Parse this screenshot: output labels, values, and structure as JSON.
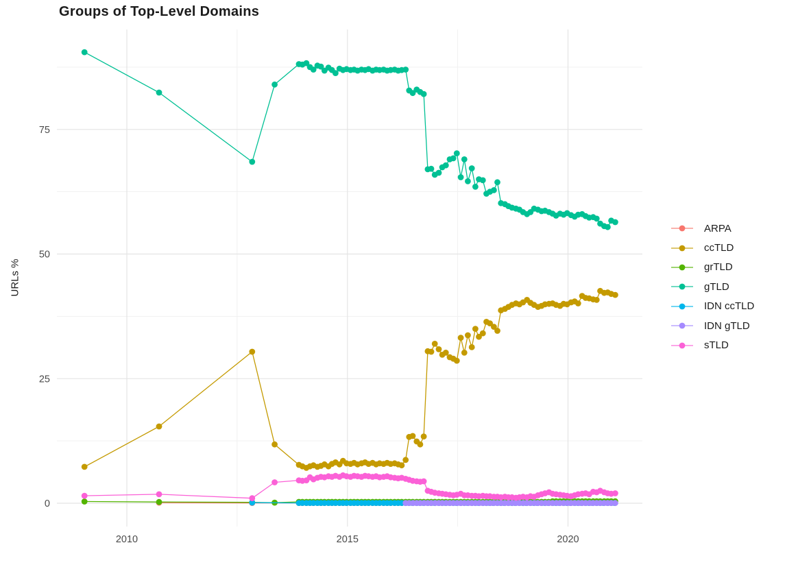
{
  "chart_data": {
    "type": "line",
    "title": "Groups of Top-Level Domains",
    "xlabel": "",
    "ylabel": "URLs %",
    "x_ticks": [
      2010,
      2015,
      2020
    ],
    "x_minor_ticks": [
      2012.5,
      2017.5
    ],
    "y_ticks": [
      0,
      25,
      50,
      75
    ],
    "y_minor_ticks": [
      12.5,
      37.5,
      62.5,
      87.5
    ],
    "xlim": [
      2008.45,
      2021.7
    ],
    "ylim": [
      -4.7,
      95
    ],
    "grid": true,
    "legend_position": "right",
    "series": [
      {
        "name": "ARPA",
        "color": "#F8766D",
        "points": [
          [
            2010.73,
            0.12
          ],
          [
            2012.84,
            0.06
          ]
        ],
        "runs": [
          {
            "from": 2013.9,
            "to": 2021.07,
            "step": 0.0833,
            "value": 0.05
          }
        ]
      },
      {
        "name": "ccTLD",
        "color": "#C49A00",
        "points": [
          [
            2009.04,
            7.3
          ],
          [
            2010.73,
            15.4
          ],
          [
            2012.84,
            30.4
          ],
          [
            2013.35,
            11.8
          ],
          [
            2013.9,
            7.7
          ],
          [
            2013.98,
            7.4
          ],
          [
            2014.07,
            7.1
          ],
          [
            2014.15,
            7.4
          ],
          [
            2014.23,
            7.6
          ],
          [
            2014.32,
            7.3
          ],
          [
            2014.4,
            7.5
          ],
          [
            2014.48,
            7.8
          ],
          [
            2014.57,
            7.4
          ],
          [
            2014.65,
            7.9
          ],
          [
            2014.73,
            8.2
          ],
          [
            2014.82,
            7.8
          ],
          [
            2014.9,
            8.5
          ],
          [
            2014.98,
            8.0
          ],
          [
            2015.07,
            7.9
          ],
          [
            2015.15,
            8.1
          ],
          [
            2015.23,
            7.8
          ],
          [
            2015.32,
            8.0
          ],
          [
            2015.4,
            8.2
          ],
          [
            2015.48,
            7.9
          ],
          [
            2015.57,
            8.1
          ],
          [
            2015.65,
            7.8
          ],
          [
            2015.73,
            8.0
          ],
          [
            2015.82,
            7.9
          ],
          [
            2015.9,
            8.1
          ],
          [
            2015.98,
            7.9
          ],
          [
            2016.07,
            8.0
          ],
          [
            2016.15,
            7.8
          ],
          [
            2016.23,
            7.6
          ],
          [
            2016.32,
            8.7
          ],
          [
            2016.4,
            13.3
          ],
          [
            2016.48,
            13.5
          ],
          [
            2016.57,
            12.4
          ],
          [
            2016.65,
            11.8
          ],
          [
            2016.73,
            13.4
          ],
          [
            2016.82,
            30.5
          ],
          [
            2016.9,
            30.4
          ],
          [
            2016.98,
            32.0
          ],
          [
            2017.07,
            30.9
          ],
          [
            2017.15,
            29.8
          ],
          [
            2017.23,
            30.2
          ],
          [
            2017.32,
            29.3
          ],
          [
            2017.4,
            29.0
          ],
          [
            2017.48,
            28.6
          ],
          [
            2017.57,
            33.2
          ],
          [
            2017.65,
            30.2
          ],
          [
            2017.73,
            33.7
          ],
          [
            2017.82,
            31.3
          ],
          [
            2017.9,
            35.0
          ],
          [
            2017.98,
            33.4
          ],
          [
            2018.07,
            34.1
          ],
          [
            2018.15,
            36.4
          ],
          [
            2018.23,
            36.1
          ],
          [
            2018.32,
            35.4
          ],
          [
            2018.4,
            34.6
          ],
          [
            2018.48,
            38.7
          ],
          [
            2018.57,
            39.0
          ],
          [
            2018.65,
            39.4
          ],
          [
            2018.73,
            39.8
          ],
          [
            2018.82,
            40.1
          ],
          [
            2018.9,
            39.9
          ],
          [
            2018.98,
            40.3
          ],
          [
            2019.07,
            40.8
          ],
          [
            2019.15,
            40.2
          ],
          [
            2019.23,
            39.8
          ],
          [
            2019.32,
            39.4
          ],
          [
            2019.4,
            39.6
          ],
          [
            2019.48,
            39.9
          ],
          [
            2019.57,
            40.0
          ],
          [
            2019.65,
            40.1
          ],
          [
            2019.73,
            39.8
          ],
          [
            2019.82,
            39.6
          ],
          [
            2019.9,
            40.0
          ],
          [
            2019.98,
            39.9
          ],
          [
            2020.07,
            40.3
          ],
          [
            2020.15,
            40.5
          ],
          [
            2020.23,
            40.1
          ],
          [
            2020.32,
            41.6
          ],
          [
            2020.4,
            41.2
          ],
          [
            2020.48,
            41.1
          ],
          [
            2020.57,
            40.9
          ],
          [
            2020.65,
            40.8
          ],
          [
            2020.73,
            42.6
          ],
          [
            2020.82,
            42.2
          ],
          [
            2020.9,
            42.3
          ],
          [
            2020.98,
            42.0
          ],
          [
            2021.07,
            41.8
          ]
        ]
      },
      {
        "name": "grTLD",
        "color": "#53B400",
        "points": [
          [
            2009.04,
            0.35
          ],
          [
            2010.73,
            0.25
          ],
          [
            2012.84,
            0.18
          ],
          [
            2013.35,
            0.12
          ]
        ],
        "runs": [
          {
            "from": 2013.9,
            "to": 2019.57,
            "step": 0.0833,
            "value": 0.28
          },
          {
            "from": 2019.65,
            "to": 2021.07,
            "step": 0.0833,
            "value": 0.4
          }
        ]
      },
      {
        "name": "gTLD",
        "color": "#00C094",
        "points": [
          [
            2009.04,
            90.5
          ],
          [
            2010.73,
            82.4
          ],
          [
            2012.84,
            68.5
          ],
          [
            2013.35,
            84.0
          ],
          [
            2013.9,
            88.1
          ],
          [
            2013.98,
            88.0
          ],
          [
            2014.07,
            88.3
          ],
          [
            2014.15,
            87.5
          ],
          [
            2014.23,
            87.0
          ],
          [
            2014.32,
            87.8
          ],
          [
            2014.4,
            87.6
          ],
          [
            2014.48,
            86.8
          ],
          [
            2014.57,
            87.4
          ],
          [
            2014.65,
            86.9
          ],
          [
            2014.73,
            86.3
          ],
          [
            2014.82,
            87.2
          ],
          [
            2014.9,
            86.9
          ],
          [
            2014.98,
            87.1
          ],
          [
            2015.07,
            86.9
          ],
          [
            2015.15,
            87.0
          ],
          [
            2015.23,
            86.8
          ],
          [
            2015.32,
            87.0
          ],
          [
            2015.4,
            86.9
          ],
          [
            2015.48,
            87.1
          ],
          [
            2015.57,
            86.8
          ],
          [
            2015.65,
            87.0
          ],
          [
            2015.73,
            86.9
          ],
          [
            2015.82,
            87.0
          ],
          [
            2015.9,
            86.8
          ],
          [
            2015.98,
            86.9
          ],
          [
            2016.07,
            87.0
          ],
          [
            2016.15,
            86.8
          ],
          [
            2016.23,
            86.9
          ],
          [
            2016.32,
            87.0
          ],
          [
            2016.4,
            82.8
          ],
          [
            2016.48,
            82.3
          ],
          [
            2016.57,
            83.0
          ],
          [
            2016.65,
            82.5
          ],
          [
            2016.73,
            82.1
          ],
          [
            2016.82,
            67.0
          ],
          [
            2016.9,
            67.1
          ],
          [
            2016.98,
            65.9
          ],
          [
            2017.07,
            66.3
          ],
          [
            2017.15,
            67.4
          ],
          [
            2017.23,
            67.8
          ],
          [
            2017.32,
            69.0
          ],
          [
            2017.4,
            69.2
          ],
          [
            2017.48,
            70.2
          ],
          [
            2017.57,
            65.4
          ],
          [
            2017.65,
            69.0
          ],
          [
            2017.73,
            64.6
          ],
          [
            2017.82,
            67.2
          ],
          [
            2017.9,
            63.5
          ],
          [
            2017.98,
            65.0
          ],
          [
            2018.07,
            64.8
          ],
          [
            2018.15,
            62.1
          ],
          [
            2018.23,
            62.5
          ],
          [
            2018.32,
            62.8
          ],
          [
            2018.4,
            64.4
          ],
          [
            2018.48,
            60.2
          ],
          [
            2018.57,
            60.0
          ],
          [
            2018.65,
            59.6
          ],
          [
            2018.73,
            59.3
          ],
          [
            2018.82,
            59.1
          ],
          [
            2018.9,
            58.9
          ],
          [
            2018.98,
            58.4
          ],
          [
            2019.07,
            58.0
          ],
          [
            2019.15,
            58.4
          ],
          [
            2019.23,
            59.1
          ],
          [
            2019.32,
            58.9
          ],
          [
            2019.4,
            58.6
          ],
          [
            2019.48,
            58.7
          ],
          [
            2019.57,
            58.4
          ],
          [
            2019.65,
            58.1
          ],
          [
            2019.73,
            57.7
          ],
          [
            2019.82,
            58.1
          ],
          [
            2019.9,
            57.9
          ],
          [
            2019.98,
            58.2
          ],
          [
            2020.07,
            57.8
          ],
          [
            2020.15,
            57.5
          ],
          [
            2020.23,
            57.9
          ],
          [
            2020.32,
            58.0
          ],
          [
            2020.4,
            57.6
          ],
          [
            2020.48,
            57.3
          ],
          [
            2020.57,
            57.4
          ],
          [
            2020.65,
            57.1
          ],
          [
            2020.73,
            56.1
          ],
          [
            2020.82,
            55.6
          ],
          [
            2020.9,
            55.4
          ],
          [
            2020.98,
            56.7
          ],
          [
            2021.07,
            56.4
          ]
        ]
      },
      {
        "name": "IDN ccTLD",
        "color": "#00B6EB",
        "points": [
          [
            2012.84,
            0.12
          ]
        ],
        "runs": [
          {
            "from": 2013.9,
            "to": 2021.07,
            "step": 0.0833,
            "value": 0.06
          }
        ]
      },
      {
        "name": "IDN gTLD",
        "color": "#A58AFF",
        "points": [],
        "runs": [
          {
            "from": 2016.32,
            "to": 2021.07,
            "step": 0.0833,
            "value": 0.04
          }
        ]
      },
      {
        "name": "sTLD",
        "color": "#FB61D7",
        "points": [
          [
            2009.04,
            1.5
          ],
          [
            2010.73,
            1.8
          ],
          [
            2012.84,
            1.0
          ],
          [
            2013.35,
            4.2
          ],
          [
            2013.9,
            4.6
          ],
          [
            2013.98,
            4.5
          ],
          [
            2014.07,
            4.6
          ],
          [
            2014.15,
            5.2
          ],
          [
            2014.23,
            4.8
          ],
          [
            2014.32,
            5.1
          ],
          [
            2014.4,
            5.3
          ],
          [
            2014.48,
            5.2
          ],
          [
            2014.57,
            5.4
          ],
          [
            2014.65,
            5.3
          ],
          [
            2014.73,
            5.5
          ],
          [
            2014.82,
            5.3
          ],
          [
            2014.9,
            5.6
          ],
          [
            2014.98,
            5.4
          ],
          [
            2015.07,
            5.3
          ],
          [
            2015.15,
            5.5
          ],
          [
            2015.23,
            5.4
          ],
          [
            2015.32,
            5.3
          ],
          [
            2015.4,
            5.5
          ],
          [
            2015.48,
            5.4
          ],
          [
            2015.57,
            5.3
          ],
          [
            2015.65,
            5.4
          ],
          [
            2015.73,
            5.2
          ],
          [
            2015.82,
            5.3
          ],
          [
            2015.9,
            5.4
          ],
          [
            2015.98,
            5.2
          ],
          [
            2016.07,
            5.1
          ],
          [
            2016.15,
            5.0
          ],
          [
            2016.23,
            5.1
          ],
          [
            2016.32,
            4.9
          ],
          [
            2016.4,
            4.7
          ],
          [
            2016.48,
            4.5
          ],
          [
            2016.57,
            4.4
          ],
          [
            2016.65,
            4.3
          ],
          [
            2016.73,
            4.4
          ],
          [
            2016.82,
            2.5
          ],
          [
            2016.9,
            2.3
          ],
          [
            2016.98,
            2.1
          ],
          [
            2017.07,
            2.0
          ],
          [
            2017.15,
            1.9
          ],
          [
            2017.23,
            1.8
          ],
          [
            2017.32,
            1.7
          ],
          [
            2017.4,
            1.6
          ],
          [
            2017.48,
            1.7
          ],
          [
            2017.57,
            1.9
          ],
          [
            2017.65,
            1.6
          ],
          [
            2017.73,
            1.6
          ],
          [
            2017.82,
            1.5
          ],
          [
            2017.9,
            1.5
          ],
          [
            2017.98,
            1.4
          ],
          [
            2018.07,
            1.5
          ],
          [
            2018.15,
            1.4
          ],
          [
            2018.23,
            1.4
          ],
          [
            2018.32,
            1.3
          ],
          [
            2018.4,
            1.3
          ],
          [
            2018.48,
            1.2
          ],
          [
            2018.57,
            1.3
          ],
          [
            2018.65,
            1.2
          ],
          [
            2018.73,
            1.2
          ],
          [
            2018.82,
            1.1
          ],
          [
            2018.9,
            1.2
          ],
          [
            2018.98,
            1.3
          ],
          [
            2019.07,
            1.2
          ],
          [
            2019.15,
            1.4
          ],
          [
            2019.23,
            1.3
          ],
          [
            2019.32,
            1.6
          ],
          [
            2019.4,
            1.8
          ],
          [
            2019.48,
            2.0
          ],
          [
            2019.57,
            2.2
          ],
          [
            2019.65,
            1.9
          ],
          [
            2019.73,
            1.8
          ],
          [
            2019.82,
            1.7
          ],
          [
            2019.9,
            1.6
          ],
          [
            2019.98,
            1.5
          ],
          [
            2020.07,
            1.4
          ],
          [
            2020.15,
            1.6
          ],
          [
            2020.23,
            1.8
          ],
          [
            2020.32,
            1.9
          ],
          [
            2020.4,
            2.0
          ],
          [
            2020.48,
            1.8
          ],
          [
            2020.57,
            2.3
          ],
          [
            2020.65,
            2.2
          ],
          [
            2020.73,
            2.5
          ],
          [
            2020.82,
            2.2
          ],
          [
            2020.9,
            2.0
          ],
          [
            2020.98,
            1.9
          ],
          [
            2021.07,
            2.0
          ]
        ]
      }
    ],
    "style": {
      "grid_major_color": "#E4E4E4",
      "grid_minor_color": "#EFEFEF",
      "tick_label_color": "#4a4a4a",
      "text_color": "#1b1b1b",
      "point_radius": 4.4,
      "line_width": 1.3
    }
  }
}
